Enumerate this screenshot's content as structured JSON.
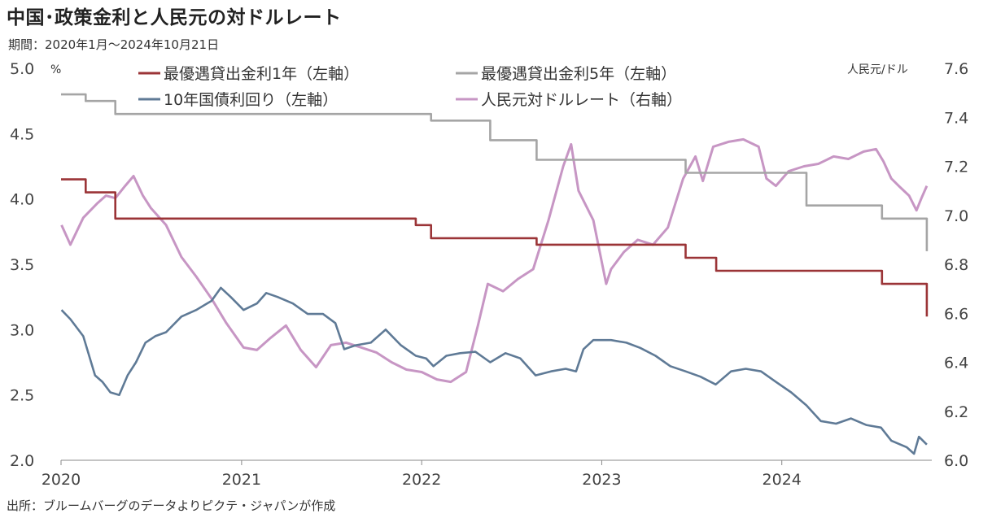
{
  "title": "中国･政策金利と人民元の対ドルレート",
  "subtitle": "期間：2020年1月～2024年10月21日",
  "source": "出所：ブルームバーグのデータよりピクテ・ジャパンが作成",
  "colors": {
    "lpr1y": "#9b3437",
    "lpr5y": "#a5a5a5",
    "cgb10y": "#5f7a96",
    "usdcny": "#c796c4"
  },
  "chart_data": {
    "type": "line",
    "left_unit": "%",
    "right_unit": "人民元/ドル",
    "y_left_range": [
      2.0,
      5.0
    ],
    "y_right_range": [
      6.0,
      7.6
    ],
    "y_left_ticks": [
      "2.0",
      "2.5",
      "3.0",
      "3.5",
      "4.0",
      "4.5",
      "5.0"
    ],
    "y_right_ticks": [
      "6.0",
      "6.2",
      "6.4",
      "6.6",
      "6.8",
      "7.0",
      "7.2",
      "7.4",
      "7.6"
    ],
    "x_ticks": [
      "2020",
      "2021",
      "2022",
      "2023",
      "2024"
    ],
    "x_range": [
      "2020-01-01",
      "2024-10-21"
    ],
    "legend": [
      {
        "key": "lpr1y",
        "label": "最優遇貸出金利1年（左軸）"
      },
      {
        "key": "lpr5y",
        "label": "最優遇貸出金利5年（左軸）"
      },
      {
        "key": "cgb10y",
        "label": "10年国債利回り（左軸）"
      },
      {
        "key": "usdcny",
        "label": "人民元対ドルレート（右軸）"
      }
    ],
    "series": [
      {
        "name": "最優遇貸出金利1年（左軸）",
        "key": "lpr1y",
        "axis": "left",
        "step": true,
        "points": [
          [
            "2020-01-01",
            4.15
          ],
          [
            "2020-02-20",
            4.05
          ],
          [
            "2020-04-20",
            3.85
          ],
          [
            "2021-12-20",
            3.8
          ],
          [
            "2022-01-20",
            3.7
          ],
          [
            "2022-08-22",
            3.65
          ],
          [
            "2023-06-20",
            3.55
          ],
          [
            "2023-08-21",
            3.45
          ],
          [
            "2024-07-22",
            3.35
          ],
          [
            "2024-10-21",
            3.1
          ]
        ]
      },
      {
        "name": "最優遇貸出金利5年（左軸）",
        "key": "lpr5y",
        "axis": "left",
        "step": true,
        "points": [
          [
            "2020-01-01",
            4.8
          ],
          [
            "2020-02-20",
            4.75
          ],
          [
            "2020-04-20",
            4.65
          ],
          [
            "2022-01-20",
            4.6
          ],
          [
            "2022-05-20",
            4.45
          ],
          [
            "2022-08-22",
            4.3
          ],
          [
            "2023-06-20",
            4.2
          ],
          [
            "2024-02-20",
            3.95
          ],
          [
            "2024-07-22",
            3.85
          ],
          [
            "2024-10-21",
            3.6
          ]
        ]
      },
      {
        "name": "10年国債利回り（左軸）",
        "key": "cgb10y",
        "axis": "left",
        "step": false,
        "points": [
          [
            "2020-01-02",
            3.15
          ],
          [
            "2020-01-20",
            3.08
          ],
          [
            "2020-02-15",
            2.95
          ],
          [
            "2020-03-10",
            2.65
          ],
          [
            "2020-03-25",
            2.6
          ],
          [
            "2020-04-10",
            2.52
          ],
          [
            "2020-04-28",
            2.5
          ],
          [
            "2020-05-15",
            2.65
          ],
          [
            "2020-06-01",
            2.75
          ],
          [
            "2020-06-20",
            2.9
          ],
          [
            "2020-07-10",
            2.95
          ],
          [
            "2020-08-01",
            2.98
          ],
          [
            "2020-09-01",
            3.1
          ],
          [
            "2020-10-01",
            3.15
          ],
          [
            "2020-11-01",
            3.22
          ],
          [
            "2020-11-20",
            3.32
          ],
          [
            "2020-12-10",
            3.25
          ],
          [
            "2021-01-05",
            3.15
          ],
          [
            "2021-02-01",
            3.2
          ],
          [
            "2021-02-20",
            3.28
          ],
          [
            "2021-03-15",
            3.25
          ],
          [
            "2021-04-15",
            3.2
          ],
          [
            "2021-05-15",
            3.12
          ],
          [
            "2021-06-15",
            3.12
          ],
          [
            "2021-07-10",
            3.05
          ],
          [
            "2021-07-28",
            2.85
          ],
          [
            "2021-08-20",
            2.88
          ],
          [
            "2021-09-20",
            2.9
          ],
          [
            "2021-10-20",
            3.0
          ],
          [
            "2021-11-20",
            2.88
          ],
          [
            "2021-12-20",
            2.8
          ],
          [
            "2022-01-10",
            2.78
          ],
          [
            "2022-01-25",
            2.72
          ],
          [
            "2022-02-20",
            2.8
          ],
          [
            "2022-03-20",
            2.82
          ],
          [
            "2022-04-20",
            2.83
          ],
          [
            "2022-05-20",
            2.75
          ],
          [
            "2022-06-20",
            2.82
          ],
          [
            "2022-07-20",
            2.78
          ],
          [
            "2022-08-20",
            2.65
          ],
          [
            "2022-09-20",
            2.68
          ],
          [
            "2022-10-20",
            2.7
          ],
          [
            "2022-11-10",
            2.68
          ],
          [
            "2022-11-25",
            2.85
          ],
          [
            "2022-12-15",
            2.92
          ],
          [
            "2023-01-20",
            2.92
          ],
          [
            "2023-02-20",
            2.9
          ],
          [
            "2023-03-20",
            2.86
          ],
          [
            "2023-04-20",
            2.8
          ],
          [
            "2023-05-20",
            2.72
          ],
          [
            "2023-06-20",
            2.68
          ],
          [
            "2023-07-20",
            2.64
          ],
          [
            "2023-08-20",
            2.58
          ],
          [
            "2023-09-20",
            2.68
          ],
          [
            "2023-10-20",
            2.7
          ],
          [
            "2023-11-20",
            2.68
          ],
          [
            "2023-12-20",
            2.6
          ],
          [
            "2024-01-20",
            2.52
          ],
          [
            "2024-02-20",
            2.42
          ],
          [
            "2024-03-20",
            2.3
          ],
          [
            "2024-04-20",
            2.28
          ],
          [
            "2024-05-20",
            2.32
          ],
          [
            "2024-06-20",
            2.27
          ],
          [
            "2024-07-20",
            2.25
          ],
          [
            "2024-08-10",
            2.15
          ],
          [
            "2024-09-10",
            2.1
          ],
          [
            "2024-09-25",
            2.05
          ],
          [
            "2024-10-05",
            2.18
          ],
          [
            "2024-10-21",
            2.12
          ]
        ]
      },
      {
        "name": "人民元対ドルレート（右軸）",
        "key": "usdcny",
        "axis": "right",
        "step": false,
        "points": [
          [
            "2020-01-02",
            6.96
          ],
          [
            "2020-01-20",
            6.88
          ],
          [
            "2020-02-15",
            6.99
          ],
          [
            "2020-03-15",
            7.05
          ],
          [
            "2020-04-01",
            7.08
          ],
          [
            "2020-04-20",
            7.07
          ],
          [
            "2020-05-10",
            7.12
          ],
          [
            "2020-05-27",
            7.16
          ],
          [
            "2020-06-15",
            7.08
          ],
          [
            "2020-07-01",
            7.03
          ],
          [
            "2020-08-01",
            6.96
          ],
          [
            "2020-09-01",
            6.83
          ],
          [
            "2020-10-01",
            6.75
          ],
          [
            "2020-11-01",
            6.66
          ],
          [
            "2020-12-01",
            6.56
          ],
          [
            "2021-01-05",
            6.46
          ],
          [
            "2021-02-01",
            6.45
          ],
          [
            "2021-03-01",
            6.5
          ],
          [
            "2021-04-01",
            6.55
          ],
          [
            "2021-05-01",
            6.45
          ],
          [
            "2021-06-01",
            6.38
          ],
          [
            "2021-07-01",
            6.47
          ],
          [
            "2021-08-01",
            6.48
          ],
          [
            "2021-09-01",
            6.46
          ],
          [
            "2021-10-01",
            6.44
          ],
          [
            "2021-11-01",
            6.4
          ],
          [
            "2021-12-01",
            6.37
          ],
          [
            "2022-01-01",
            6.36
          ],
          [
            "2022-02-01",
            6.33
          ],
          [
            "2022-03-01",
            6.32
          ],
          [
            "2022-04-01",
            6.36
          ],
          [
            "2022-04-25",
            6.55
          ],
          [
            "2022-05-15",
            6.72
          ],
          [
            "2022-06-15",
            6.69
          ],
          [
            "2022-07-15",
            6.74
          ],
          [
            "2022-08-15",
            6.78
          ],
          [
            "2022-09-15",
            6.98
          ],
          [
            "2022-10-15",
            7.2
          ],
          [
            "2022-10-31",
            7.29
          ],
          [
            "2022-11-15",
            7.1
          ],
          [
            "2022-12-15",
            6.98
          ],
          [
            "2023-01-10",
            6.72
          ],
          [
            "2023-01-20",
            6.78
          ],
          [
            "2023-02-15",
            6.85
          ],
          [
            "2023-03-15",
            6.9
          ],
          [
            "2023-04-15",
            6.88
          ],
          [
            "2023-05-15",
            6.95
          ],
          [
            "2023-06-15",
            7.15
          ],
          [
            "2023-07-10",
            7.24
          ],
          [
            "2023-07-25",
            7.14
          ],
          [
            "2023-08-15",
            7.28
          ],
          [
            "2023-09-15",
            7.3
          ],
          [
            "2023-10-15",
            7.31
          ],
          [
            "2023-11-15",
            7.28
          ],
          [
            "2023-12-01",
            7.15
          ],
          [
            "2023-12-20",
            7.12
          ],
          [
            "2024-01-15",
            7.18
          ],
          [
            "2024-02-15",
            7.2
          ],
          [
            "2024-03-15",
            7.21
          ],
          [
            "2024-04-15",
            7.24
          ],
          [
            "2024-05-15",
            7.23
          ],
          [
            "2024-06-15",
            7.26
          ],
          [
            "2024-07-10",
            7.27
          ],
          [
            "2024-07-25",
            7.22
          ],
          [
            "2024-08-10",
            7.15
          ],
          [
            "2024-08-25",
            7.12
          ],
          [
            "2024-09-15",
            7.08
          ],
          [
            "2024-09-30",
            7.02
          ],
          [
            "2024-10-10",
            7.07
          ],
          [
            "2024-10-21",
            7.12
          ]
        ]
      }
    ]
  }
}
